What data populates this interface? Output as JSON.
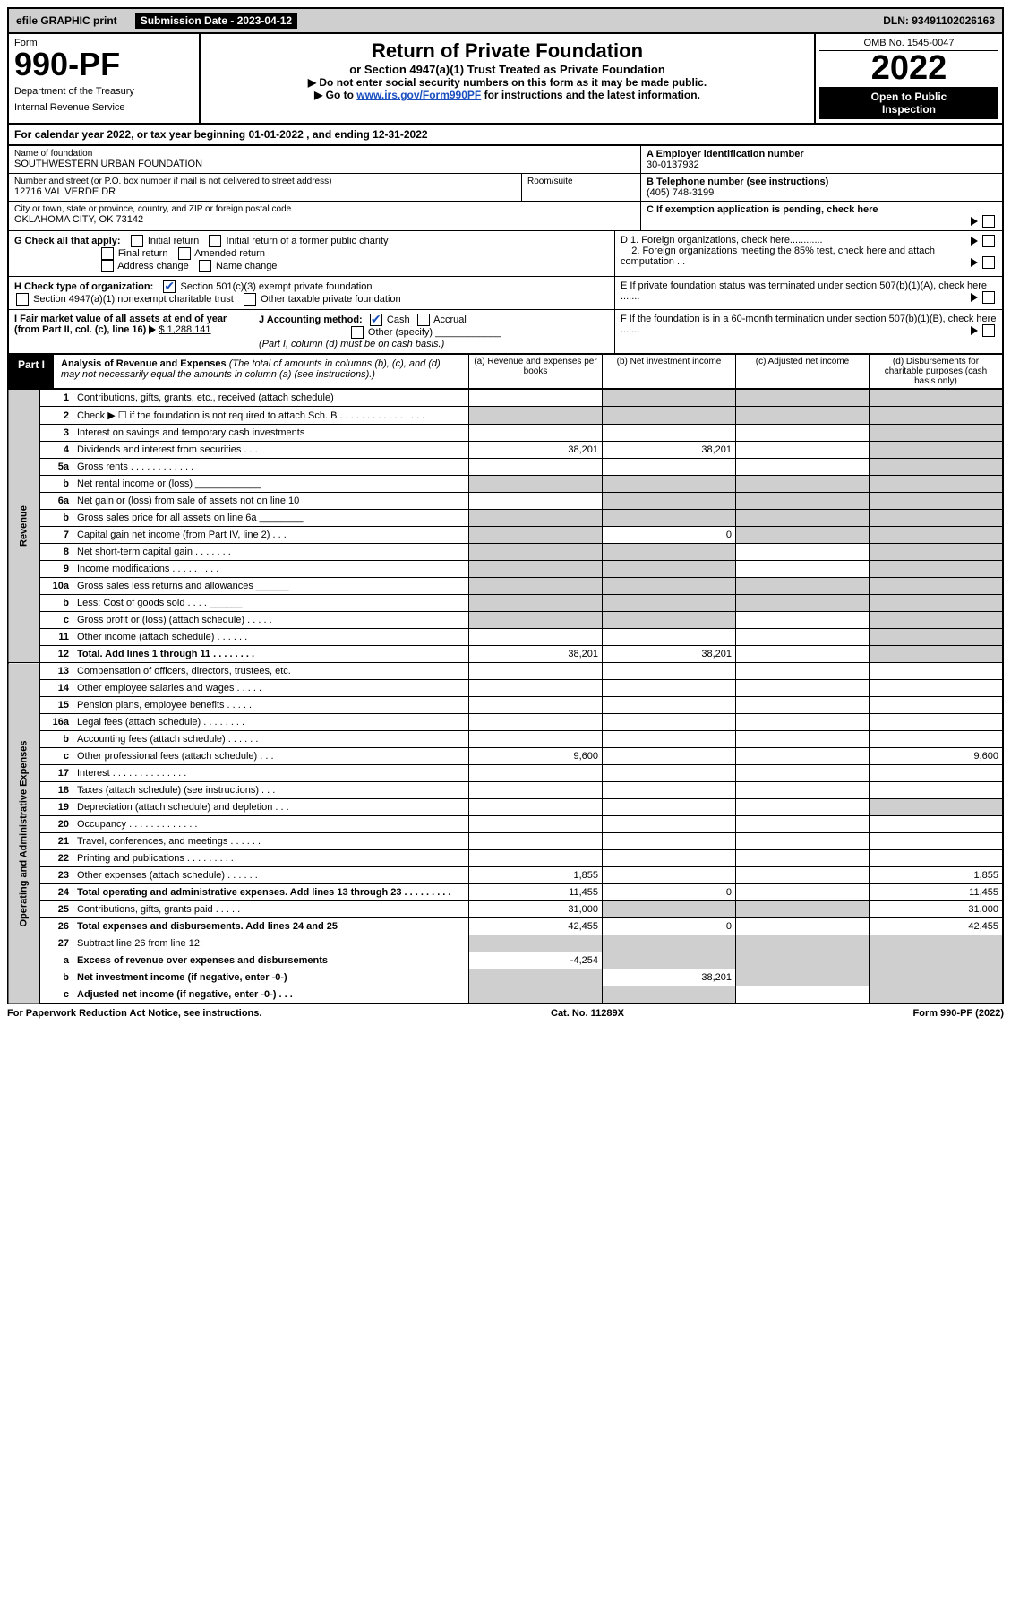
{
  "topbar": {
    "efile": "efile GRAPHIC print",
    "sub_label": "Submission Date - 2023-04-12",
    "dln": "DLN: 93491102026163"
  },
  "header": {
    "form_label": "Form",
    "form_num": "990-PF",
    "dept1": "Department of the Treasury",
    "dept2": "Internal Revenue Service",
    "title": "Return of Private Foundation",
    "subtitle": "or Section 4947(a)(1) Trust Treated as Private Foundation",
    "instr1": "▶ Do not enter social security numbers on this form as it may be made public.",
    "instr2_pre": "▶ Go to ",
    "instr2_link": "www.irs.gov/Form990PF",
    "instr2_post": " for instructions and the latest information.",
    "omb": "OMB No. 1545-0047",
    "year": "2022",
    "inspection1": "Open to Public",
    "inspection2": "Inspection"
  },
  "cal_year": "For calendar year 2022, or tax year beginning 01-01-2022              , and ending 12-31-2022",
  "entity": {
    "name_label": "Name of foundation",
    "name": "SOUTHWESTERN URBAN FOUNDATION",
    "ein_label": "A Employer identification number",
    "ein": "30-0137932",
    "addr_label": "Number and street (or P.O. box number if mail is not delivered to street address)",
    "addr": "12716 VAL VERDE DR",
    "room_label": "Room/suite",
    "phone_label": "B Telephone number (see instructions)",
    "phone": "(405) 748-3199",
    "city_label": "City or town, state or province, country, and ZIP or foreign postal code",
    "city": "OKLAHOMA CITY, OK  73142",
    "c_label": "C If exemption application is pending, check here"
  },
  "boxG": {
    "label": "G Check all that apply:",
    "o1": "Initial return",
    "o2": "Initial return of a former public charity",
    "o3": "Final return",
    "o4": "Amended return",
    "o5": "Address change",
    "o6": "Name change",
    "d1": "D 1. Foreign organizations, check here............",
    "d2": "2. Foreign organizations meeting the 85% test, check here and attach computation ...",
    "e": "E  If private foundation status was terminated under section 507(b)(1)(A), check here .......",
    "f": "F  If the foundation is in a 60-month termination under section 507(b)(1)(B), check here ......."
  },
  "boxH": {
    "label": "H Check type of organization:",
    "o1": "Section 501(c)(3) exempt private foundation",
    "o2": "Section 4947(a)(1) nonexempt charitable trust",
    "o3": "Other taxable private foundation"
  },
  "boxI": {
    "label": "I Fair market value of all assets at end of year (from Part II, col. (c), line 16)",
    "value": "$  1,288,141",
    "j_label": "J Accounting method:",
    "j_cash": "Cash",
    "j_accrual": "Accrual",
    "j_other": "Other (specify)",
    "j_note": "(Part I, column (d) must be on cash basis.)"
  },
  "part1": {
    "label": "Part I",
    "title": "Analysis of Revenue and Expenses",
    "note": " (The total of amounts in columns (b), (c), and (d) may not necessarily equal the amounts in column (a) (see instructions).)",
    "col_a": "(a)  Revenue and expenses per books",
    "col_b": "(b)  Net investment income",
    "col_c": "(c)  Adjusted net income",
    "col_d": "(d)  Disbursements for charitable purposes (cash basis only)"
  },
  "side": {
    "revenue": "Revenue",
    "expenses": "Operating and Administrative Expenses"
  },
  "rows": [
    {
      "n": "1",
      "t": "Contributions, gifts, grants, etc., received (attach schedule)",
      "a": "",
      "b": "_s",
      "c": "_s",
      "d": "_s"
    },
    {
      "n": "2",
      "t": "Check ▶ ☐ if the foundation is not required to attach Sch. B  . . . . . . . . . . . . . . . .",
      "a": "_s",
      "b": "_s",
      "c": "_s",
      "d": "_s"
    },
    {
      "n": "3",
      "t": "Interest on savings and temporary cash investments",
      "a": "",
      "b": "",
      "c": "",
      "d": "_s"
    },
    {
      "n": "4",
      "t": "Dividends and interest from securities  . . .",
      "a": "38,201",
      "b": "38,201",
      "c": "",
      "d": "_s"
    },
    {
      "n": "5a",
      "t": "Gross rents   . . . . . . . . . . . .",
      "a": "",
      "b": "",
      "c": "",
      "d": "_s"
    },
    {
      "n": "b",
      "t": "Net rental income or (loss)  ____________",
      "a": "_s",
      "b": "_s",
      "c": "_s",
      "d": "_s"
    },
    {
      "n": "6a",
      "t": "Net gain or (loss) from sale of assets not on line 10",
      "a": "",
      "b": "_s",
      "c": "_s",
      "d": "_s"
    },
    {
      "n": "b",
      "t": "Gross sales price for all assets on line 6a ________",
      "a": "_s",
      "b": "_s",
      "c": "_s",
      "d": "_s"
    },
    {
      "n": "7",
      "t": "Capital gain net income (from Part IV, line 2)  . . .",
      "a": "_s",
      "b": "0",
      "c": "_s",
      "d": "_s"
    },
    {
      "n": "8",
      "t": "Net short-term capital gain  . . . . . . .",
      "a": "_s",
      "b": "_s",
      "c": "",
      "d": "_s"
    },
    {
      "n": "9",
      "t": "Income modifications  . . . . . . . . .",
      "a": "_s",
      "b": "_s",
      "c": "",
      "d": "_s"
    },
    {
      "n": "10a",
      "t": "Gross sales less returns and allowances  ______",
      "a": "_s",
      "b": "_s",
      "c": "_s",
      "d": "_s"
    },
    {
      "n": "b",
      "t": "Less: Cost of goods sold   . . . .  ______",
      "a": "_s",
      "b": "_s",
      "c": "_s",
      "d": "_s"
    },
    {
      "n": "c",
      "t": "Gross profit or (loss) (attach schedule)  . . . . .",
      "a": "_s",
      "b": "_s",
      "c": "",
      "d": "_s"
    },
    {
      "n": "11",
      "t": "Other income (attach schedule)   . . . . . .",
      "a": "",
      "b": "",
      "c": "",
      "d": "_s"
    },
    {
      "n": "12",
      "t": "Total. Add lines 1 through 11  . . . . . . . .",
      "a": "38,201",
      "b": "38,201",
      "c": "",
      "d": "_s",
      "bold": true
    },
    {
      "n": "13",
      "t": "Compensation of officers, directors, trustees, etc.",
      "a": "",
      "b": "",
      "c": "",
      "d": ""
    },
    {
      "n": "14",
      "t": "Other employee salaries and wages  . . . . .",
      "a": "",
      "b": "",
      "c": "",
      "d": ""
    },
    {
      "n": "15",
      "t": "Pension plans, employee benefits  . . . . .",
      "a": "",
      "b": "",
      "c": "",
      "d": ""
    },
    {
      "n": "16a",
      "t": "Legal fees (attach schedule) . . . . . . . .",
      "a": "",
      "b": "",
      "c": "",
      "d": ""
    },
    {
      "n": "b",
      "t": "Accounting fees (attach schedule) . . . . . .",
      "a": "",
      "b": "",
      "c": "",
      "d": ""
    },
    {
      "n": "c",
      "t": "Other professional fees (attach schedule)   . . .",
      "a": "9,600",
      "b": "",
      "c": "",
      "d": "9,600"
    },
    {
      "n": "17",
      "t": "Interest . . . . . . . . . . . . . .",
      "a": "",
      "b": "",
      "c": "",
      "d": ""
    },
    {
      "n": "18",
      "t": "Taxes (attach schedule) (see instructions)  . . .",
      "a": "",
      "b": "",
      "c": "",
      "d": ""
    },
    {
      "n": "19",
      "t": "Depreciation (attach schedule) and depletion  . . .",
      "a": "",
      "b": "",
      "c": "",
      "d": "_s"
    },
    {
      "n": "20",
      "t": "Occupancy . . . . . . . . . . . . .",
      "a": "",
      "b": "",
      "c": "",
      "d": ""
    },
    {
      "n": "21",
      "t": "Travel, conferences, and meetings . . . . . .",
      "a": "",
      "b": "",
      "c": "",
      "d": ""
    },
    {
      "n": "22",
      "t": "Printing and publications . . . . . . . . .",
      "a": "",
      "b": "",
      "c": "",
      "d": ""
    },
    {
      "n": "23",
      "t": "Other expenses (attach schedule) . . . . . .",
      "a": "1,855",
      "b": "",
      "c": "",
      "d": "1,855"
    },
    {
      "n": "24",
      "t": "Total operating and administrative expenses. Add lines 13 through 23  . . . . . . . . .",
      "a": "11,455",
      "b": "0",
      "c": "",
      "d": "11,455",
      "bold": true
    },
    {
      "n": "25",
      "t": "Contributions, gifts, grants paid   . . . . .",
      "a": "31,000",
      "b": "_s",
      "c": "_s",
      "d": "31,000"
    },
    {
      "n": "26",
      "t": "Total expenses and disbursements. Add lines 24 and 25",
      "a": "42,455",
      "b": "0",
      "c": "",
      "d": "42,455",
      "bold": true
    },
    {
      "n": "27",
      "t": "Subtract line 26 from line 12:",
      "a": "_s",
      "b": "_s",
      "c": "_s",
      "d": "_s"
    },
    {
      "n": "a",
      "t": "Excess of revenue over expenses and disbursements",
      "a": "-4,254",
      "b": "_s",
      "c": "_s",
      "d": "_s",
      "bold": true
    },
    {
      "n": "b",
      "t": "Net investment income (if negative, enter -0-)",
      "a": "_s",
      "b": "38,201",
      "c": "_s",
      "d": "_s",
      "bold": true
    },
    {
      "n": "c",
      "t": "Adjusted net income (if negative, enter -0-)  . . .",
      "a": "_s",
      "b": "_s",
      "c": "",
      "d": "_s",
      "bold": true
    }
  ],
  "footer": {
    "left": "For Paperwork Reduction Act Notice, see instructions.",
    "mid": "Cat. No. 11289X",
    "right": "Form 990-PF (2022)"
  }
}
